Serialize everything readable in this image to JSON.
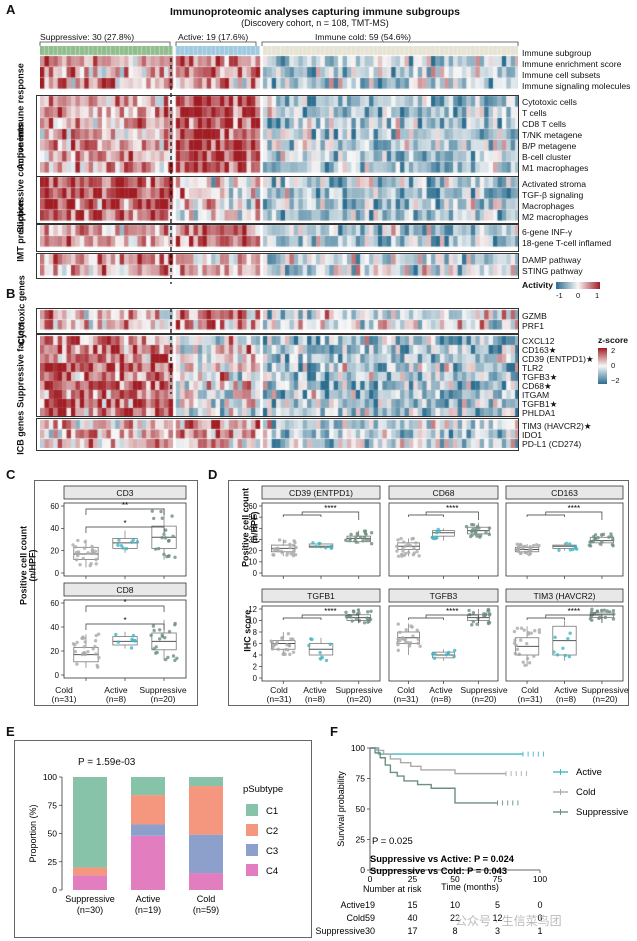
{
  "panelA": {
    "label": "A",
    "title": "Immunoproteomic analyses capturing immune subgroups",
    "subtitle": "(Discovery cohort, n = 108, TMT-MS)",
    "groups": [
      {
        "label": "Suppressive: 30 (27.8%)",
        "n": 30,
        "color": "#8fbe8c"
      },
      {
        "label": "Active: 19 (17.6%)",
        "n": 19,
        "color": "#9ecae1"
      },
      {
        "label": "Immune cold: 59 (54.6%)",
        "n": 59,
        "color": "#e6e3d3"
      }
    ],
    "top_rows": [
      "Immune subgroup",
      "Immune enrichment score",
      "Immune cell subsets",
      "Immune signaling molecules"
    ],
    "blocks": [
      {
        "title": "Active immune response",
        "rows": [
          "Cytotoxic cells",
          "T cells",
          "CD8 T cells",
          "T/NK metagene",
          "B/P metagene",
          "B-cell cluster",
          "M1 macrophages"
        ]
      },
      {
        "title": "Suppressive components",
        "rows": [
          "Activated stroma",
          "TGF-β signaling",
          "Macrophages",
          "M2 macrophages"
        ]
      },
      {
        "title": "IMT prediction",
        "rows": [
          "6-gene INF-γ",
          "18-gene T-cell inflamed"
        ]
      },
      {
        "title": "",
        "rows": [
          "DAMP pathway",
          "STING pathway"
        ]
      }
    ],
    "legend": {
      "title": "Activity",
      "ticks": [
        "-1",
        "0",
        "1"
      ]
    }
  },
  "panelB": {
    "label": "B",
    "blocks": [
      {
        "title": "Cytotoxic genes",
        "rows": [
          "GZMB",
          "PRF1"
        ]
      },
      {
        "title": "Suppressive factors",
        "rows": [
          "CXCL12",
          "CD163★",
          "CD39 (ENTPD1)★",
          "TLR2",
          "TGFB3★",
          "CD68★",
          "ITGAM",
          "TGFB1★",
          "PHLDA1"
        ]
      },
      {
        "title": "ICB genes",
        "rows": [
          "TIM3 (HAVCR2)★",
          "IDO1",
          "PD-L1 (CD274)"
        ]
      }
    ],
    "legend": {
      "title": "z-score",
      "ticks": [
        "2",
        "0",
        "−2"
      ]
    }
  },
  "colors": {
    "suppressive": "#6d8f7f",
    "active": "#41b6c4",
    "cold": "#aaaaaa",
    "C1": "#86c3a8",
    "C2": "#f4977e",
    "C3": "#8da0cb",
    "C4": "#e27ec0",
    "heat_high": "#a11d24",
    "heat_low": "#2c6e8f"
  },
  "panelC": {
    "label": "C",
    "ylabel": "Positive cell count\n(n/HPF)",
    "xlabels": [
      "Cold\n(n=31)",
      "Active\n(n=8)",
      "Suppressive\n(n=20)"
    ]
  },
  "panelD": {
    "label": "D",
    "ylabel_top": "Positive cell count\n(n/HPF)",
    "ylabel_bottom": "IHC score",
    "xlabels": [
      "Cold\n(n=31)",
      "Active\n(n=8)",
      "Suppressive\n(n=20)"
    ]
  },
  "chart_data": [
    {
      "type": "box",
      "panel": "C",
      "title": "CD3",
      "categories": [
        "Cold",
        "Active",
        "Suppressive"
      ],
      "ylim": [
        0,
        60
      ],
      "yticks": [
        0,
        20,
        40,
        60
      ],
      "sig": [
        "**",
        "*"
      ],
      "series": [
        {
          "name": "Cold",
          "q1": 12,
          "median": 17,
          "q3": 23,
          "min": 5,
          "max": 30,
          "n": 31
        },
        {
          "name": "Active",
          "q1": 22,
          "median": 27,
          "q3": 31,
          "min": 18,
          "max": 38,
          "n": 8
        },
        {
          "name": "Suppressive",
          "q1": 22,
          "median": 32,
          "q3": 42,
          "min": 12,
          "max": 58,
          "n": 20
        }
      ]
    },
    {
      "type": "box",
      "panel": "C",
      "title": "CD8",
      "categories": [
        "Cold",
        "Active",
        "Suppressive"
      ],
      "ylim": [
        0,
        60
      ],
      "yticks": [
        0,
        20,
        40,
        60
      ],
      "sig": [
        "*",
        "*"
      ],
      "series": [
        {
          "name": "Cold",
          "q1": 11,
          "median": 17,
          "q3": 23,
          "min": 6,
          "max": 34,
          "n": 31
        },
        {
          "name": "Active",
          "q1": 25,
          "median": 28,
          "q3": 32,
          "min": 22,
          "max": 36,
          "n": 8
        },
        {
          "name": "Suppressive",
          "q1": 21,
          "median": 28,
          "q3": 35,
          "min": 12,
          "max": 46,
          "n": 20
        }
      ]
    },
    {
      "type": "box",
      "panel": "D",
      "title": "CD39 (ENTPD1)",
      "categories": [
        "Cold",
        "Active",
        "Suppressive"
      ],
      "ylim": [
        0,
        60
      ],
      "yticks": [
        0,
        10,
        20,
        30,
        40,
        50,
        60
      ],
      "sig": [
        "****"
      ],
      "series": [
        {
          "name": "Cold",
          "q1": 19,
          "median": 22,
          "q3": 25,
          "min": 15,
          "max": 30,
          "n": 31
        },
        {
          "name": "Active",
          "q1": 23,
          "median": 24,
          "q3": 26,
          "min": 22,
          "max": 27,
          "n": 8
        },
        {
          "name": "Suppressive",
          "q1": 28,
          "median": 31,
          "q3": 33,
          "min": 26,
          "max": 38,
          "n": 20
        }
      ]
    },
    {
      "type": "box",
      "panel": "D",
      "title": "CD68",
      "categories": [
        "Cold",
        "Active",
        "Suppressive"
      ],
      "ylim": [
        0,
        60
      ],
      "yticks": [
        0,
        10,
        20,
        30,
        40,
        50,
        60
      ],
      "sig": [
        "****"
      ],
      "series": [
        {
          "name": "Cold",
          "q1": 21,
          "median": 24,
          "q3": 27,
          "min": 15,
          "max": 31,
          "n": 31
        },
        {
          "name": "Active",
          "q1": 33,
          "median": 36,
          "q3": 38,
          "min": 29,
          "max": 40,
          "n": 8
        },
        {
          "name": "Suppressive",
          "q1": 35,
          "median": 38,
          "q3": 41,
          "min": 32,
          "max": 45,
          "n": 20
        }
      ]
    },
    {
      "type": "box",
      "panel": "D",
      "title": "CD163",
      "categories": [
        "Cold",
        "Active",
        "Suppressive"
      ],
      "ylim": [
        0,
        60
      ],
      "yticks": [
        0,
        10,
        20,
        30,
        40,
        50,
        60
      ],
      "sig": [
        "****"
      ],
      "series": [
        {
          "name": "Cold",
          "q1": 19,
          "median": 21,
          "q3": 23,
          "min": 16,
          "max": 26,
          "n": 31
        },
        {
          "name": "Active",
          "q1": 22,
          "median": 24,
          "q3": 25,
          "min": 20,
          "max": 27,
          "n": 8
        },
        {
          "name": "Suppressive",
          "q1": 27,
          "median": 29,
          "q3": 32,
          "min": 24,
          "max": 35,
          "n": 20
        }
      ]
    },
    {
      "type": "box",
      "panel": "D",
      "title": "TGFB1",
      "categories": [
        "Cold",
        "Active",
        "Suppressive"
      ],
      "ylim": [
        0,
        12
      ],
      "yticks": [
        0,
        2,
        4,
        6,
        8,
        10,
        12
      ],
      "sig": [
        "****"
      ],
      "series": [
        {
          "name": "Cold",
          "q1": 5,
          "median": 6,
          "q3": 6.5,
          "min": 4,
          "max": 8,
          "n": 31
        },
        {
          "name": "Active",
          "q1": 4,
          "median": 5,
          "q3": 6,
          "min": 3,
          "max": 7,
          "n": 8
        },
        {
          "name": "Suppressive",
          "q1": 10,
          "median": 10.5,
          "q3": 11,
          "min": 9.5,
          "max": 12,
          "n": 20
        }
      ]
    },
    {
      "type": "box",
      "panel": "D",
      "title": "TGFB3",
      "categories": [
        "Cold",
        "Active",
        "Suppressive"
      ],
      "ylim": [
        0,
        12
      ],
      "yticks": [
        0,
        2,
        4,
        6,
        8,
        10,
        12
      ],
      "sig": [
        "****"
      ],
      "series": [
        {
          "name": "Cold",
          "q1": 6,
          "median": 7,
          "q3": 8,
          "min": 4,
          "max": 9.5,
          "n": 31
        },
        {
          "name": "Active",
          "q1": 3.5,
          "median": 4,
          "q3": 4.5,
          "min": 3,
          "max": 5,
          "n": 8
        },
        {
          "name": "Suppressive",
          "q1": 10,
          "median": 10.5,
          "q3": 11,
          "min": 9,
          "max": 12,
          "n": 20
        }
      ]
    },
    {
      "type": "box",
      "panel": "D",
      "title": "TIM3 (HAVCR2)",
      "categories": [
        "Cold",
        "Active",
        "Suppressive"
      ],
      "ylim": [
        0,
        12
      ],
      "yticks": [
        0,
        2,
        4,
        6,
        8,
        10,
        12
      ],
      "sig": [
        "****"
      ],
      "series": [
        {
          "name": "Cold",
          "q1": 4,
          "median": 5.5,
          "q3": 7,
          "min": 2,
          "max": 9,
          "n": 31
        },
        {
          "name": "Active",
          "q1": 4,
          "median": 6.5,
          "q3": 9,
          "min": 3,
          "max": 10,
          "n": 8
        },
        {
          "name": "Suppressive",
          "q1": 10.5,
          "median": 11,
          "q3": 11.3,
          "min": 10,
          "max": 12,
          "n": 20
        }
      ]
    },
    {
      "type": "bar",
      "panel": "E",
      "stacked": true,
      "title": "P = 1.59e-03",
      "categories": [
        "Suppressive\n(n=30)",
        "Active\n(n=19)",
        "Cold\n(n=59)"
      ],
      "ylabel": "Proportion (%)",
      "ylim": [
        0,
        100
      ],
      "yticks": [
        0,
        25,
        50,
        75,
        100
      ],
      "legend_title": "pSubtype",
      "series": [
        {
          "name": "C1",
          "values": [
            80,
            16,
            8
          ]
        },
        {
          "name": "C2",
          "values": [
            7,
            26,
            43
          ]
        },
        {
          "name": "C3",
          "values": [
            0,
            10,
            34
          ]
        },
        {
          "name": "C4",
          "values": [
            13,
            48,
            15
          ]
        }
      ]
    },
    {
      "type": "line",
      "panel": "F",
      "subtype": "kaplan-meier",
      "xlabel": "Time (months)",
      "ylabel": "Survival probability",
      "xlim": [
        0,
        100
      ],
      "ylim": [
        0,
        100
      ],
      "xticks": [
        0,
        25,
        50,
        75,
        100
      ],
      "yticks": [
        0,
        25,
        50,
        75,
        100
      ],
      "pvalue": "P = 0.025",
      "note1": "Suppressive vs Active: P = 0.024",
      "note2": "Suppressive vs Cold: P = 0.043",
      "series": [
        {
          "name": "Active",
          "x": [
            0,
            5,
            90
          ],
          "y": [
            100,
            95,
            95
          ]
        },
        {
          "name": "Cold",
          "x": [
            0,
            4,
            8,
            12,
            18,
            24,
            30,
            50,
            80
          ],
          "y": [
            100,
            98,
            95,
            91,
            88,
            85,
            82,
            79,
            79
          ]
        },
        {
          "name": "Suppressive",
          "x": [
            0,
            3,
            6,
            9,
            12,
            16,
            20,
            28,
            36,
            50,
            75
          ],
          "y": [
            100,
            96,
            92,
            86,
            80,
            77,
            73,
            70,
            67,
            55,
            55
          ]
        }
      ],
      "risk_table": {
        "title": "Number at risk",
        "times": [
          0,
          25,
          50,
          75,
          100
        ],
        "rows": [
          {
            "name": "Active",
            "values": [
              "19",
              "15",
              "10",
              "5",
              "0"
            ]
          },
          {
            "name": "Cold",
            "values": [
              "59",
              "40",
              "22",
              "12",
              "0"
            ]
          },
          {
            "name": "Suppressive",
            "values": [
              "30",
              "17",
              "8",
              "3",
              "1"
            ]
          }
        ]
      }
    }
  ],
  "panelE_label": "E",
  "panelF_label": "F",
  "watermark": "公众号 · 生信菜鸟团"
}
